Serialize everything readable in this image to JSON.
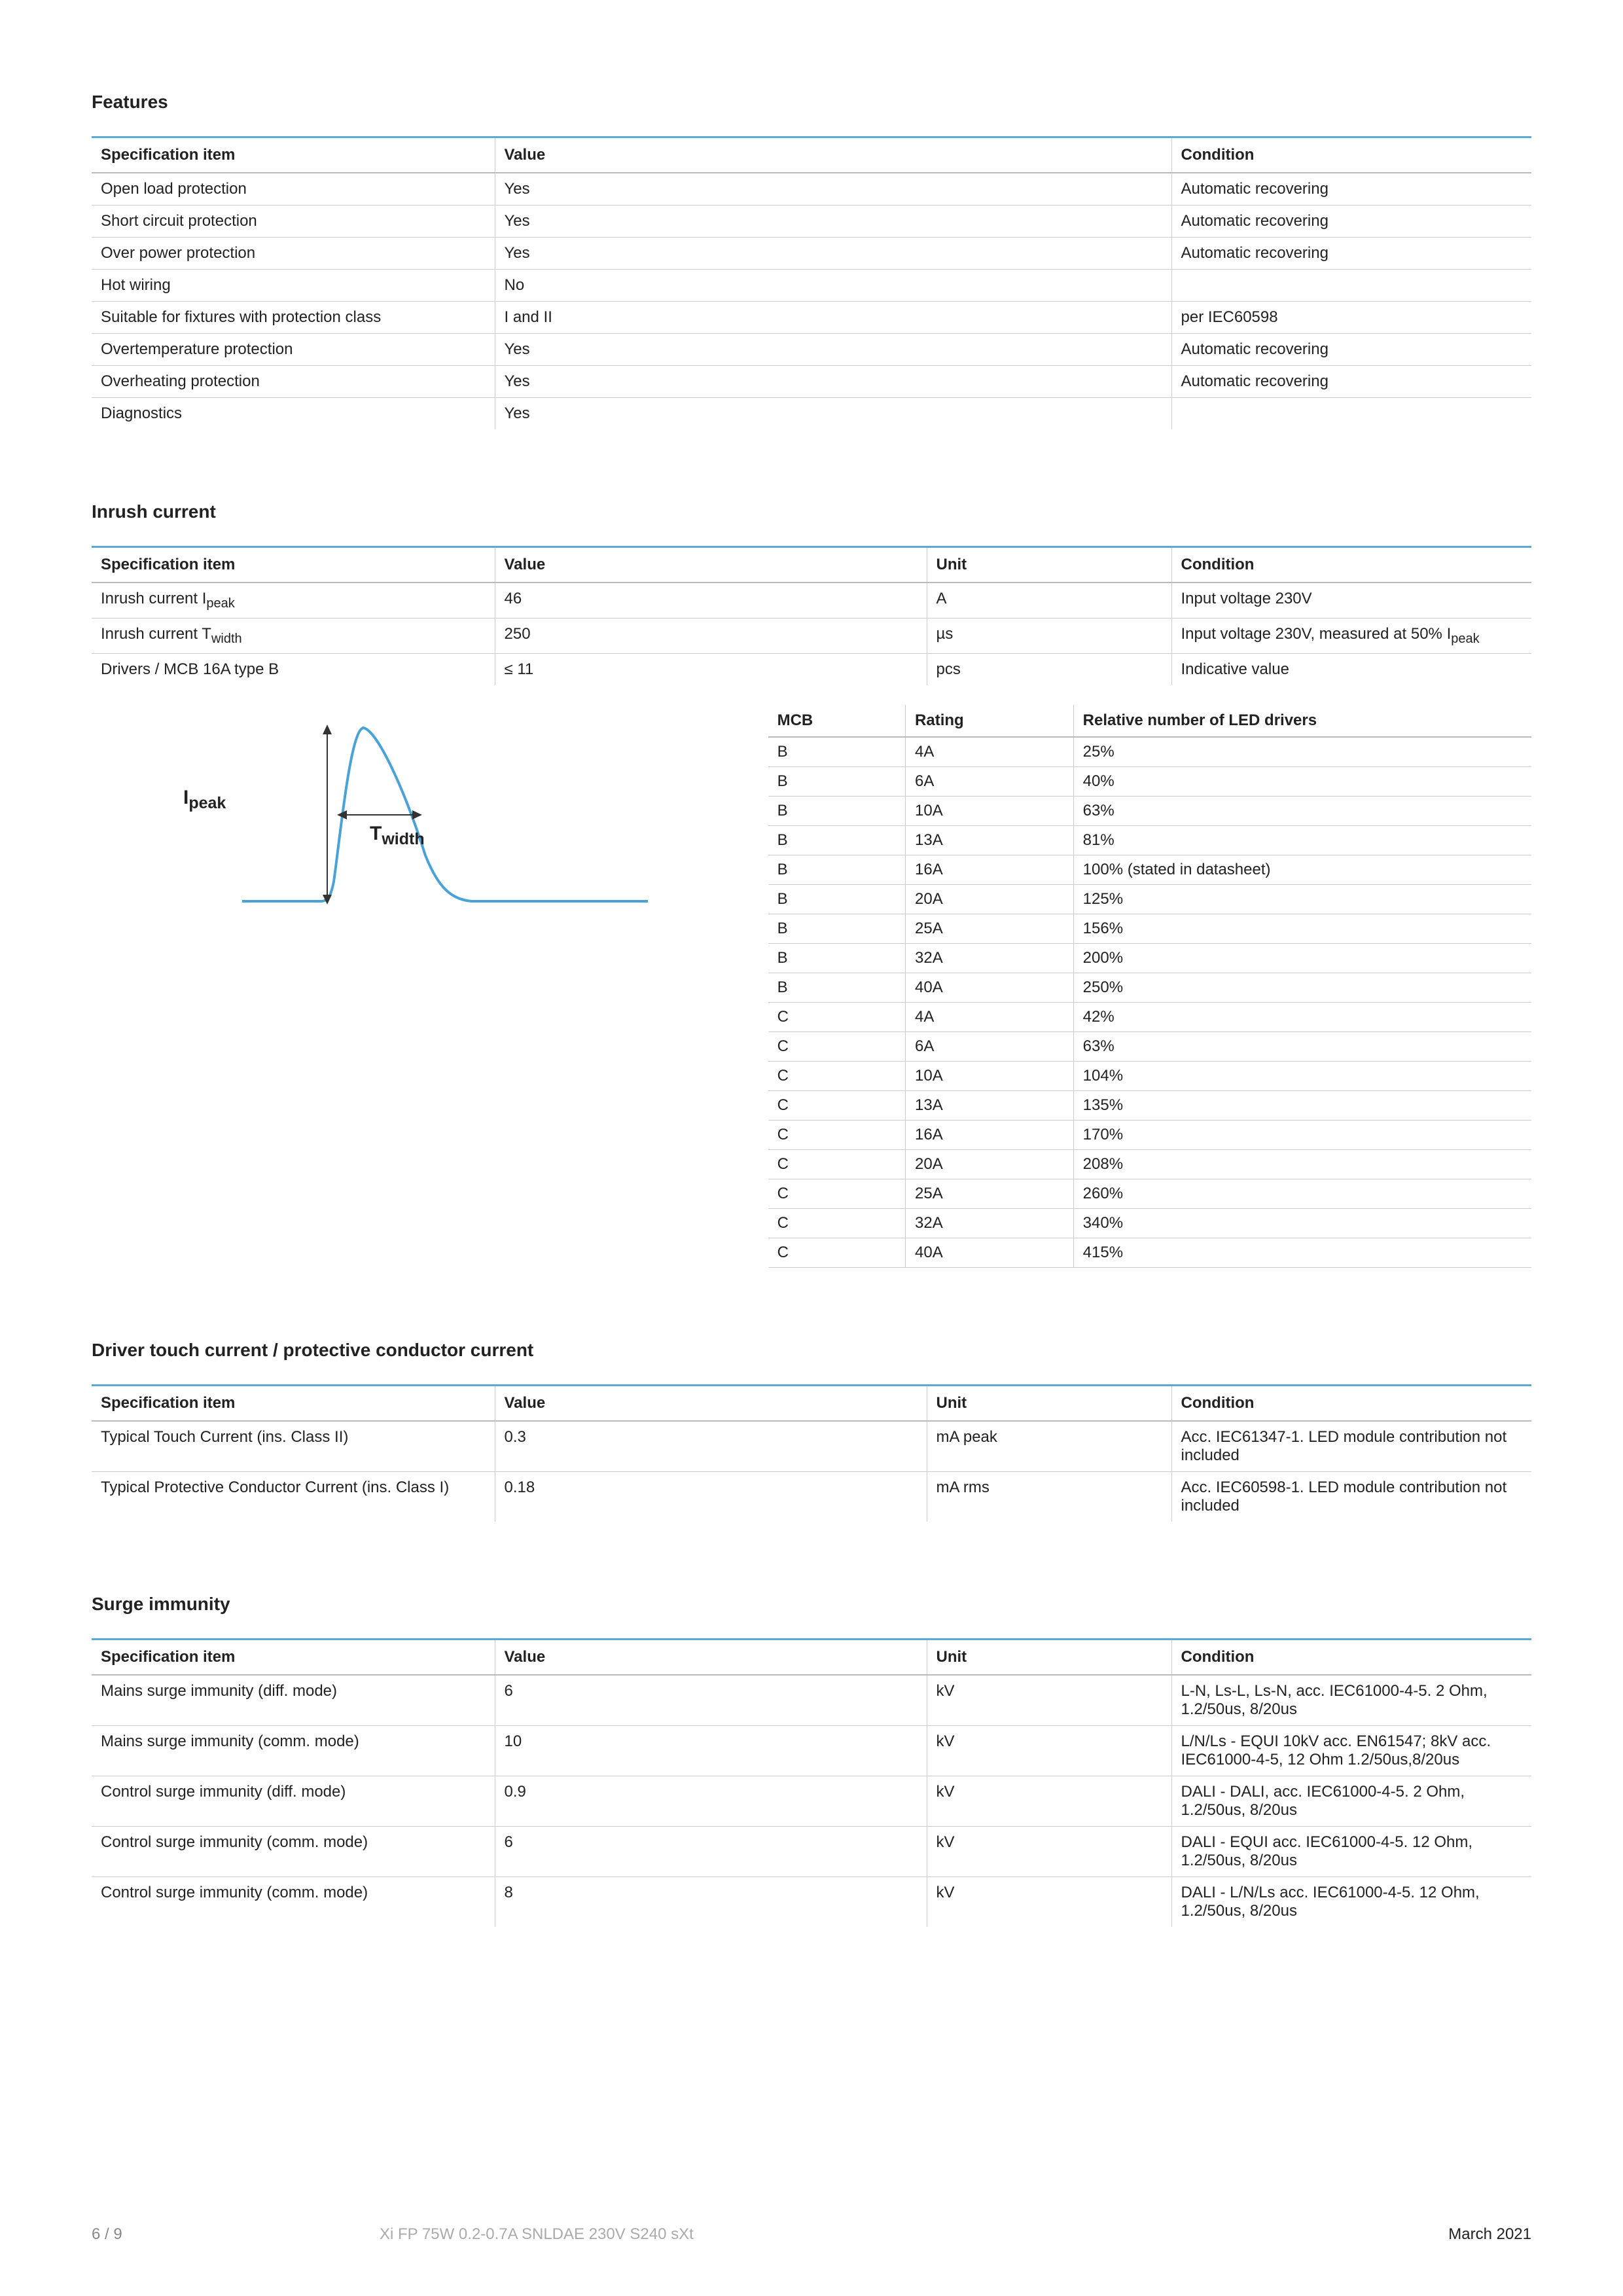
{
  "sections": {
    "features": {
      "title": "Features",
      "headers": [
        "Specification item",
        "Value",
        "Condition"
      ],
      "rows": [
        [
          "Open load protection",
          "Yes",
          "Automatic recovering"
        ],
        [
          "Short circuit protection",
          "Yes",
          "Automatic recovering"
        ],
        [
          "Over power protection",
          "Yes",
          "Automatic recovering"
        ],
        [
          "Hot wiring",
          "No",
          ""
        ],
        [
          "Suitable for fixtures with protection class",
          "I and II",
          "per IEC60598"
        ],
        [
          "Overtemperature protection",
          "Yes",
          "Automatic recovering"
        ],
        [
          "Overheating protection",
          "Yes",
          "Automatic recovering"
        ],
        [
          "Diagnostics",
          "Yes",
          ""
        ]
      ]
    },
    "inrush": {
      "title": "Inrush current",
      "headers": [
        "Specification item",
        "Value",
        "Unit",
        "Condition"
      ],
      "rows_html": [
        [
          "Inrush current I<sub>peak</sub>",
          "46",
          "A",
          "Input voltage 230V"
        ],
        [
          "Inrush current T<sub>width</sub>",
          "250",
          "µs",
          "Input voltage 230V, measured at 50% I<sub>peak</sub>"
        ],
        [
          "Drivers / MCB 16A type B",
          "≤ 11",
          "pcs",
          "Indicative value"
        ]
      ],
      "diagram": {
        "ipeak_label_html": "I<sub>peak</sub>",
        "twidth_label_html": "T<sub>width</sub>",
        "curve_color": "#4aa3d8",
        "axis_color": "#333333"
      },
      "mcb": {
        "headers": [
          "MCB",
          "Rating",
          "Relative number of LED drivers"
        ],
        "rows": [
          [
            "B",
            "4A",
            "25%"
          ],
          [
            "B",
            "6A",
            "40%"
          ],
          [
            "B",
            "10A",
            "63%"
          ],
          [
            "B",
            "13A",
            "81%"
          ],
          [
            "B",
            "16A",
            "100% (stated in datasheet)"
          ],
          [
            "B",
            "20A",
            "125%"
          ],
          [
            "B",
            "25A",
            "156%"
          ],
          [
            "B",
            "32A",
            "200%"
          ],
          [
            "B",
            "40A",
            "250%"
          ],
          [
            "C",
            "4A",
            "42%"
          ],
          [
            "C",
            "6A",
            "63%"
          ],
          [
            "C",
            "10A",
            "104%"
          ],
          [
            "C",
            "13A",
            "135%"
          ],
          [
            "C",
            "16A",
            "170%"
          ],
          [
            "C",
            "20A",
            "208%"
          ],
          [
            "C",
            "25A",
            "260%"
          ],
          [
            "C",
            "32A",
            "340%"
          ],
          [
            "C",
            "40A",
            "415%"
          ]
        ]
      }
    },
    "touch": {
      "title": "Driver touch current / protective conductor current",
      "headers": [
        "Specification item",
        "Value",
        "Unit",
        "Condition"
      ],
      "rows": [
        [
          "Typical Touch Current (ins. Class II)",
          "0.3",
          "mA peak",
          "Acc. IEC61347-1. LED module contribution not included"
        ],
        [
          "Typical Protective Conductor Current (ins. Class I)",
          "0.18",
          "mA rms",
          "Acc. IEC60598-1. LED module contribution not included"
        ]
      ]
    },
    "surge": {
      "title": "Surge immunity",
      "headers": [
        "Specification item",
        "Value",
        "Unit",
        "Condition"
      ],
      "rows": [
        [
          "Mains surge immunity (diff. mode)",
          "6",
          "kV",
          "L-N, Ls-L, Ls-N, acc. IEC61000-4-5. 2 Ohm, 1.2/50us, 8/20us"
        ],
        [
          "Mains surge immunity (comm. mode)",
          "10",
          "kV",
          "L/N/Ls - EQUI 10kV acc. EN61547; 8kV acc. IEC61000-4-5, 12 Ohm 1.2/50us,8/20us"
        ],
        [
          "Control surge immunity (diff. mode)",
          "0.9",
          "kV",
          "DALI - DALI, acc. IEC61000-4-5. 2 Ohm, 1.2/50us, 8/20us"
        ],
        [
          "Control surge immunity (comm. mode)",
          "6",
          "kV",
          "DALI - EQUI acc. IEC61000-4-5. 12 Ohm, 1.2/50us, 8/20us"
        ],
        [
          "Control surge immunity (comm. mode)",
          "8",
          "kV",
          "DALI - L/N/Ls acc. IEC61000-4-5. 12 Ohm, 1.2/50us, 8/20us"
        ]
      ]
    }
  },
  "footer": {
    "page": "6 / 9",
    "product": "Xi FP 75W 0.2-0.7A SNLDAE 230V S240 sXt",
    "date": "March 2021"
  },
  "colors": {
    "accent": "#5aa9d6"
  }
}
